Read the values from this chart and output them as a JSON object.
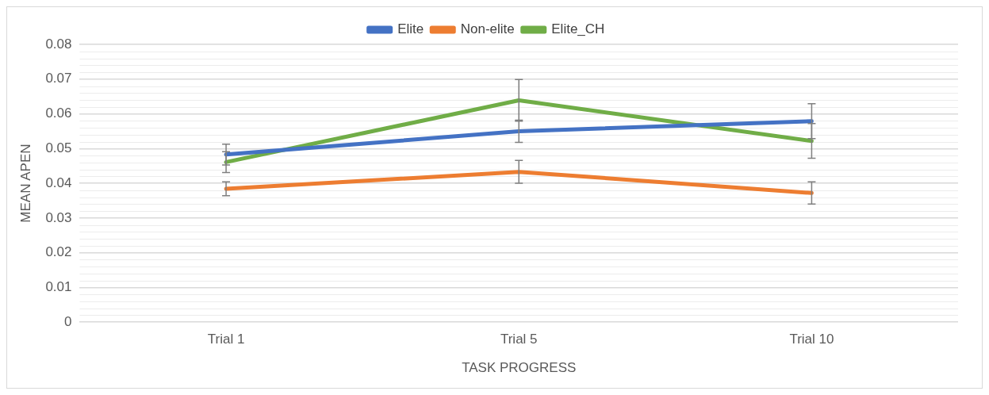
{
  "chart_data": {
    "type": "line",
    "xlabel": "TASK PROGRESS",
    "ylabel": "MEAN APEN",
    "categories": [
      "Trial 1",
      "Trial 5",
      "Trial 10"
    ],
    "series": [
      {
        "name": "Elite",
        "color": "#4472c4",
        "values": [
          0.0483,
          0.055,
          0.0579
        ],
        "errors": [
          0.003,
          0.0032,
          0.005
        ]
      },
      {
        "name": "Non-elite",
        "color": "#ed7d31",
        "values": [
          0.0384,
          0.0433,
          0.0372
        ],
        "errors": [
          0.002,
          0.0033,
          0.0032
        ]
      },
      {
        "name": "Elite_CH",
        "color": "#70ad47",
        "values": [
          0.0461,
          0.0639,
          0.0522
        ],
        "errors": [
          0.003,
          0.006,
          0.005
        ]
      }
    ],
    "ylim": [
      0,
      0.08
    ],
    "yticks": [
      0,
      0.01,
      0.02,
      0.03,
      0.04,
      0.05,
      0.06,
      0.07,
      0.08
    ],
    "grid": "y",
    "legend": "top",
    "marker": "none",
    "line_style": "solid"
  }
}
